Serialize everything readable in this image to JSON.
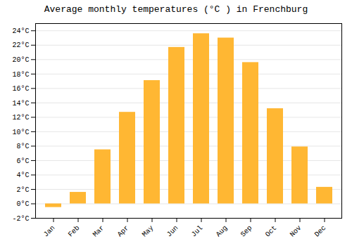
{
  "chart_data": {
    "type": "bar",
    "title": "Average monthly temperatures (°C ) in Frenchburg",
    "categories": [
      "Jan",
      "Feb",
      "Mar",
      "Apr",
      "May",
      "Jun",
      "Jul",
      "Aug",
      "Sep",
      "Oct",
      "Nov",
      "Dec"
    ],
    "values": [
      -0.5,
      1.6,
      7.5,
      12.7,
      17.1,
      21.7,
      23.6,
      23.0,
      19.6,
      13.2,
      7.9,
      2.3
    ],
    "color": "#FFB733",
    "ylim": [
      -2,
      25
    ],
    "yticks": [
      {
        "value": -2,
        "label": "-2°C"
      },
      {
        "value": 0,
        "label": "0°C"
      },
      {
        "value": 2,
        "label": "2°C"
      },
      {
        "value": 4,
        "label": "4°C"
      },
      {
        "value": 6,
        "label": "6°C"
      },
      {
        "value": 8,
        "label": "8°C"
      },
      {
        "value": 10,
        "label": "10°C"
      },
      {
        "value": 12,
        "label": "12°C"
      },
      {
        "value": 14,
        "label": "14°C"
      },
      {
        "value": 16,
        "label": "16°C"
      },
      {
        "value": 18,
        "label": "18°C"
      },
      {
        "value": 20,
        "label": "20°C"
      },
      {
        "value": 22,
        "label": "22°C"
      },
      {
        "value": 24,
        "label": "24°C"
      }
    ],
    "grid": true
  }
}
